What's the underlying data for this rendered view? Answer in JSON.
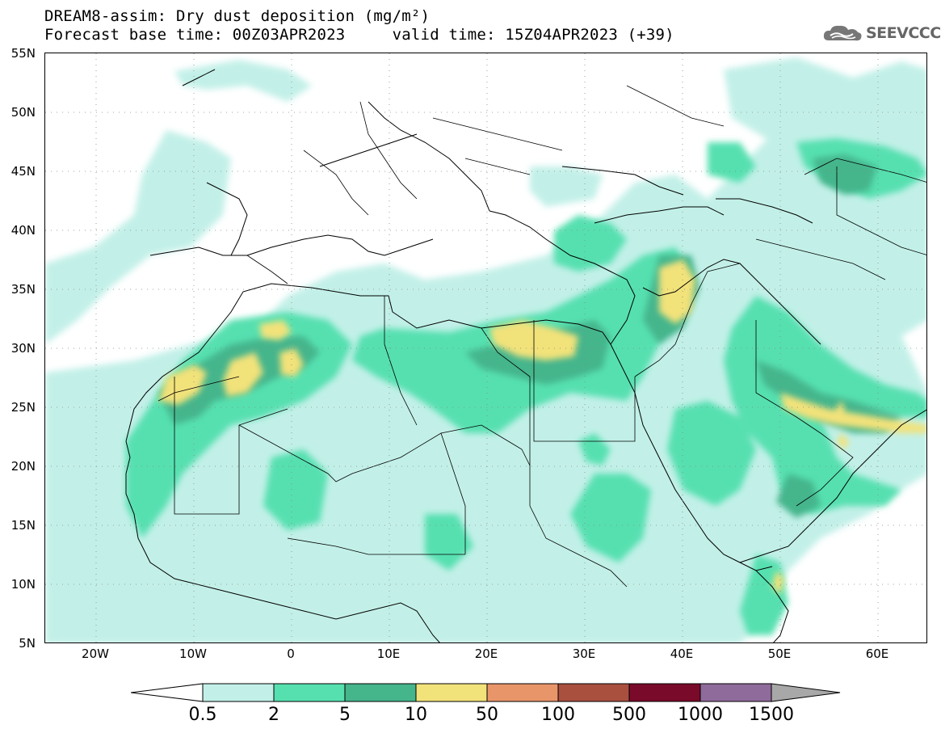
{
  "header": {
    "title_line1": "DREAM8-assim: Dry dust deposition (mg/m²)",
    "title_line2": "Forecast base time: 00Z03APR2023     valid time: 15Z04APR2023 (+39)",
    "logo_text": "SEEVCCC"
  },
  "map": {
    "lat_labels": [
      "55N",
      "50N",
      "45N",
      "40N",
      "35N",
      "30N",
      "25N",
      "20N",
      "15N",
      "10N",
      "5N"
    ],
    "lon_labels": [
      "20W",
      "10W",
      "0",
      "10E",
      "20E",
      "30E",
      "40E",
      "50E",
      "60E"
    ],
    "region": "North Africa, Europe and Middle East"
  },
  "legend": {
    "labels": [
      "0.5",
      "2",
      "5",
      "10",
      "50",
      "100",
      "500",
      "1000",
      "1500"
    ],
    "colors": [
      "#c2f0e8",
      "#56e0b0",
      "#45b58c",
      "#f2e27a",
      "#e9956a",
      "#a9503f",
      "#7a0a2a",
      "#8f6b9c",
      "#a8a8a8"
    ]
  }
}
